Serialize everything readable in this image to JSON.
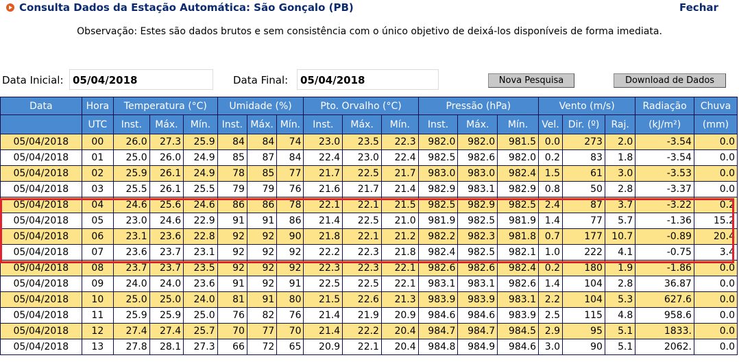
{
  "header": {
    "title": "Consulta Dados da Estação Automática: São Gonçalo (PB)",
    "close_label": "Fechar",
    "note": "Observação: Estes são dados brutos e sem consistência com o único objetivo de deixá-los disponíveis de forma imediata."
  },
  "search": {
    "start_label": "Data Inicial:",
    "start_value": "05/04/2018",
    "end_label": "Data Final:",
    "end_value": "05/04/2018",
    "new_search_label": "Nova Pesquisa",
    "download_label": "Download de Dados"
  },
  "table": {
    "group_headers": [
      "Data",
      "Hora",
      "Temperatura (°C)",
      "Umidade (%)",
      "Pto. Orvalho (°C)",
      "Pressão (hPa)",
      "Vento (m/s)",
      "Radiação",
      "Chuva"
    ],
    "sub_headers": [
      "",
      "UTC",
      "Inst.",
      "Máx.",
      "Mín.",
      "Inst.",
      "Máx.",
      "Mín.",
      "Inst.",
      "Máx.",
      "Mín.",
      "Inst.",
      "Máx.",
      "Mín.",
      "Vel.",
      "Dir. (º)",
      "Raj.",
      "(kJ/m²)",
      "(mm)"
    ],
    "rows": [
      [
        "05/04/2018",
        "00",
        "26.0",
        "27.3",
        "25.9",
        "84",
        "84",
        "74",
        "23.0",
        "23.5",
        "22.3",
        "982.0",
        "982.0",
        "981.5",
        "0.0",
        "273",
        "2.0",
        "-3.54",
        "0.0"
      ],
      [
        "05/04/2018",
        "01",
        "25.0",
        "26.0",
        "24.9",
        "85",
        "87",
        "84",
        "22.4",
        "23.0",
        "22.4",
        "982.5",
        "982.6",
        "982.0",
        "0.2",
        "83",
        "1.8",
        "-3.54",
        "0.0"
      ],
      [
        "05/04/2018",
        "02",
        "25.9",
        "26.1",
        "24.9",
        "78",
        "85",
        "77",
        "21.7",
        "22.5",
        "21.7",
        "983.0",
        "983.0",
        "982.4",
        "1.5",
        "61",
        "3.0",
        "-3.53",
        "0.0"
      ],
      [
        "05/04/2018",
        "03",
        "25.5",
        "26.1",
        "25.5",
        "79",
        "79",
        "76",
        "21.6",
        "21.7",
        "21.4",
        "982.9",
        "983.1",
        "982.9",
        "0.8",
        "50",
        "2.8",
        "-3.37",
        "0.0"
      ],
      [
        "05/04/2018",
        "04",
        "24.6",
        "25.6",
        "24.6",
        "86",
        "86",
        "78",
        "22.1",
        "22.1",
        "21.5",
        "982.5",
        "982.9",
        "982.5",
        "2.4",
        "87",
        "3.7",
        "-3.22",
        "0.2"
      ],
      [
        "05/04/2018",
        "05",
        "23.0",
        "24.6",
        "22.9",
        "91",
        "91",
        "86",
        "21.4",
        "22.5",
        "21.0",
        "981.9",
        "982.5",
        "981.9",
        "1.4",
        "77",
        "5.7",
        "-1.36",
        "15.2"
      ],
      [
        "05/04/2018",
        "06",
        "23.1",
        "23.6",
        "22.8",
        "92",
        "92",
        "90",
        "21.8",
        "22.1",
        "21.2",
        "982.2",
        "982.3",
        "981.8",
        "0.7",
        "177",
        "10.7",
        "-0.89",
        "20.4"
      ],
      [
        "05/04/2018",
        "07",
        "23.6",
        "23.7",
        "23.1",
        "92",
        "92",
        "92",
        "22.2",
        "22.3",
        "21.8",
        "982.4",
        "982.5",
        "982.1",
        "1.0",
        "222",
        "4.1",
        "-0.75",
        "3.4"
      ],
      [
        "05/04/2018",
        "08",
        "23.7",
        "23.7",
        "23.5",
        "92",
        "92",
        "92",
        "22.3",
        "22.3",
        "22.1",
        "982.6",
        "982.6",
        "982.4",
        "0.2",
        "180",
        "1.9",
        "-1.86",
        "0.0"
      ],
      [
        "05/04/2018",
        "09",
        "24.0",
        "24.0",
        "23.6",
        "91",
        "92",
        "91",
        "22.5",
        "22.5",
        "22.1",
        "983.1",
        "983.1",
        "982.6",
        "1.4",
        "104",
        "2.8",
        "36.87",
        "0.0"
      ],
      [
        "05/04/2018",
        "10",
        "25.0",
        "25.0",
        "24.0",
        "81",
        "91",
        "80",
        "21.5",
        "22.6",
        "21.3",
        "983.9",
        "983.9",
        "983.1",
        "2.2",
        "104",
        "5.3",
        "627.6",
        "0.0"
      ],
      [
        "05/04/2018",
        "11",
        "25.9",
        "25.9",
        "25.0",
        "76",
        "82",
        "76",
        "21.4",
        "21.9",
        "20.9",
        "984.6",
        "984.6",
        "983.9",
        "2.5",
        "115",
        "4.8",
        "958.6",
        "0.0"
      ],
      [
        "05/04/2018",
        "12",
        "27.4",
        "27.4",
        "25.7",
        "70",
        "77",
        "70",
        "21.4",
        "22.2",
        "20.4",
        "984.7",
        "984.7",
        "984.5",
        "2.9",
        "95",
        "5.1",
        "1833.",
        "0.0"
      ],
      [
        "05/04/2018",
        "13",
        "27.8",
        "28.1",
        "27.3",
        "66",
        "72",
        "65",
        "20.9",
        "22.1",
        "20.4",
        "984.8",
        "984.9",
        "984.6",
        "3.0",
        "90",
        "5.1",
        "2062.",
        "0.0"
      ]
    ]
  },
  "colors": {
    "header_bg": "#4a8ad0",
    "row_odd": "#fde48b",
    "row_even": "#ffffff",
    "highlight": "#e0232e",
    "title": "#0c2b6e"
  }
}
